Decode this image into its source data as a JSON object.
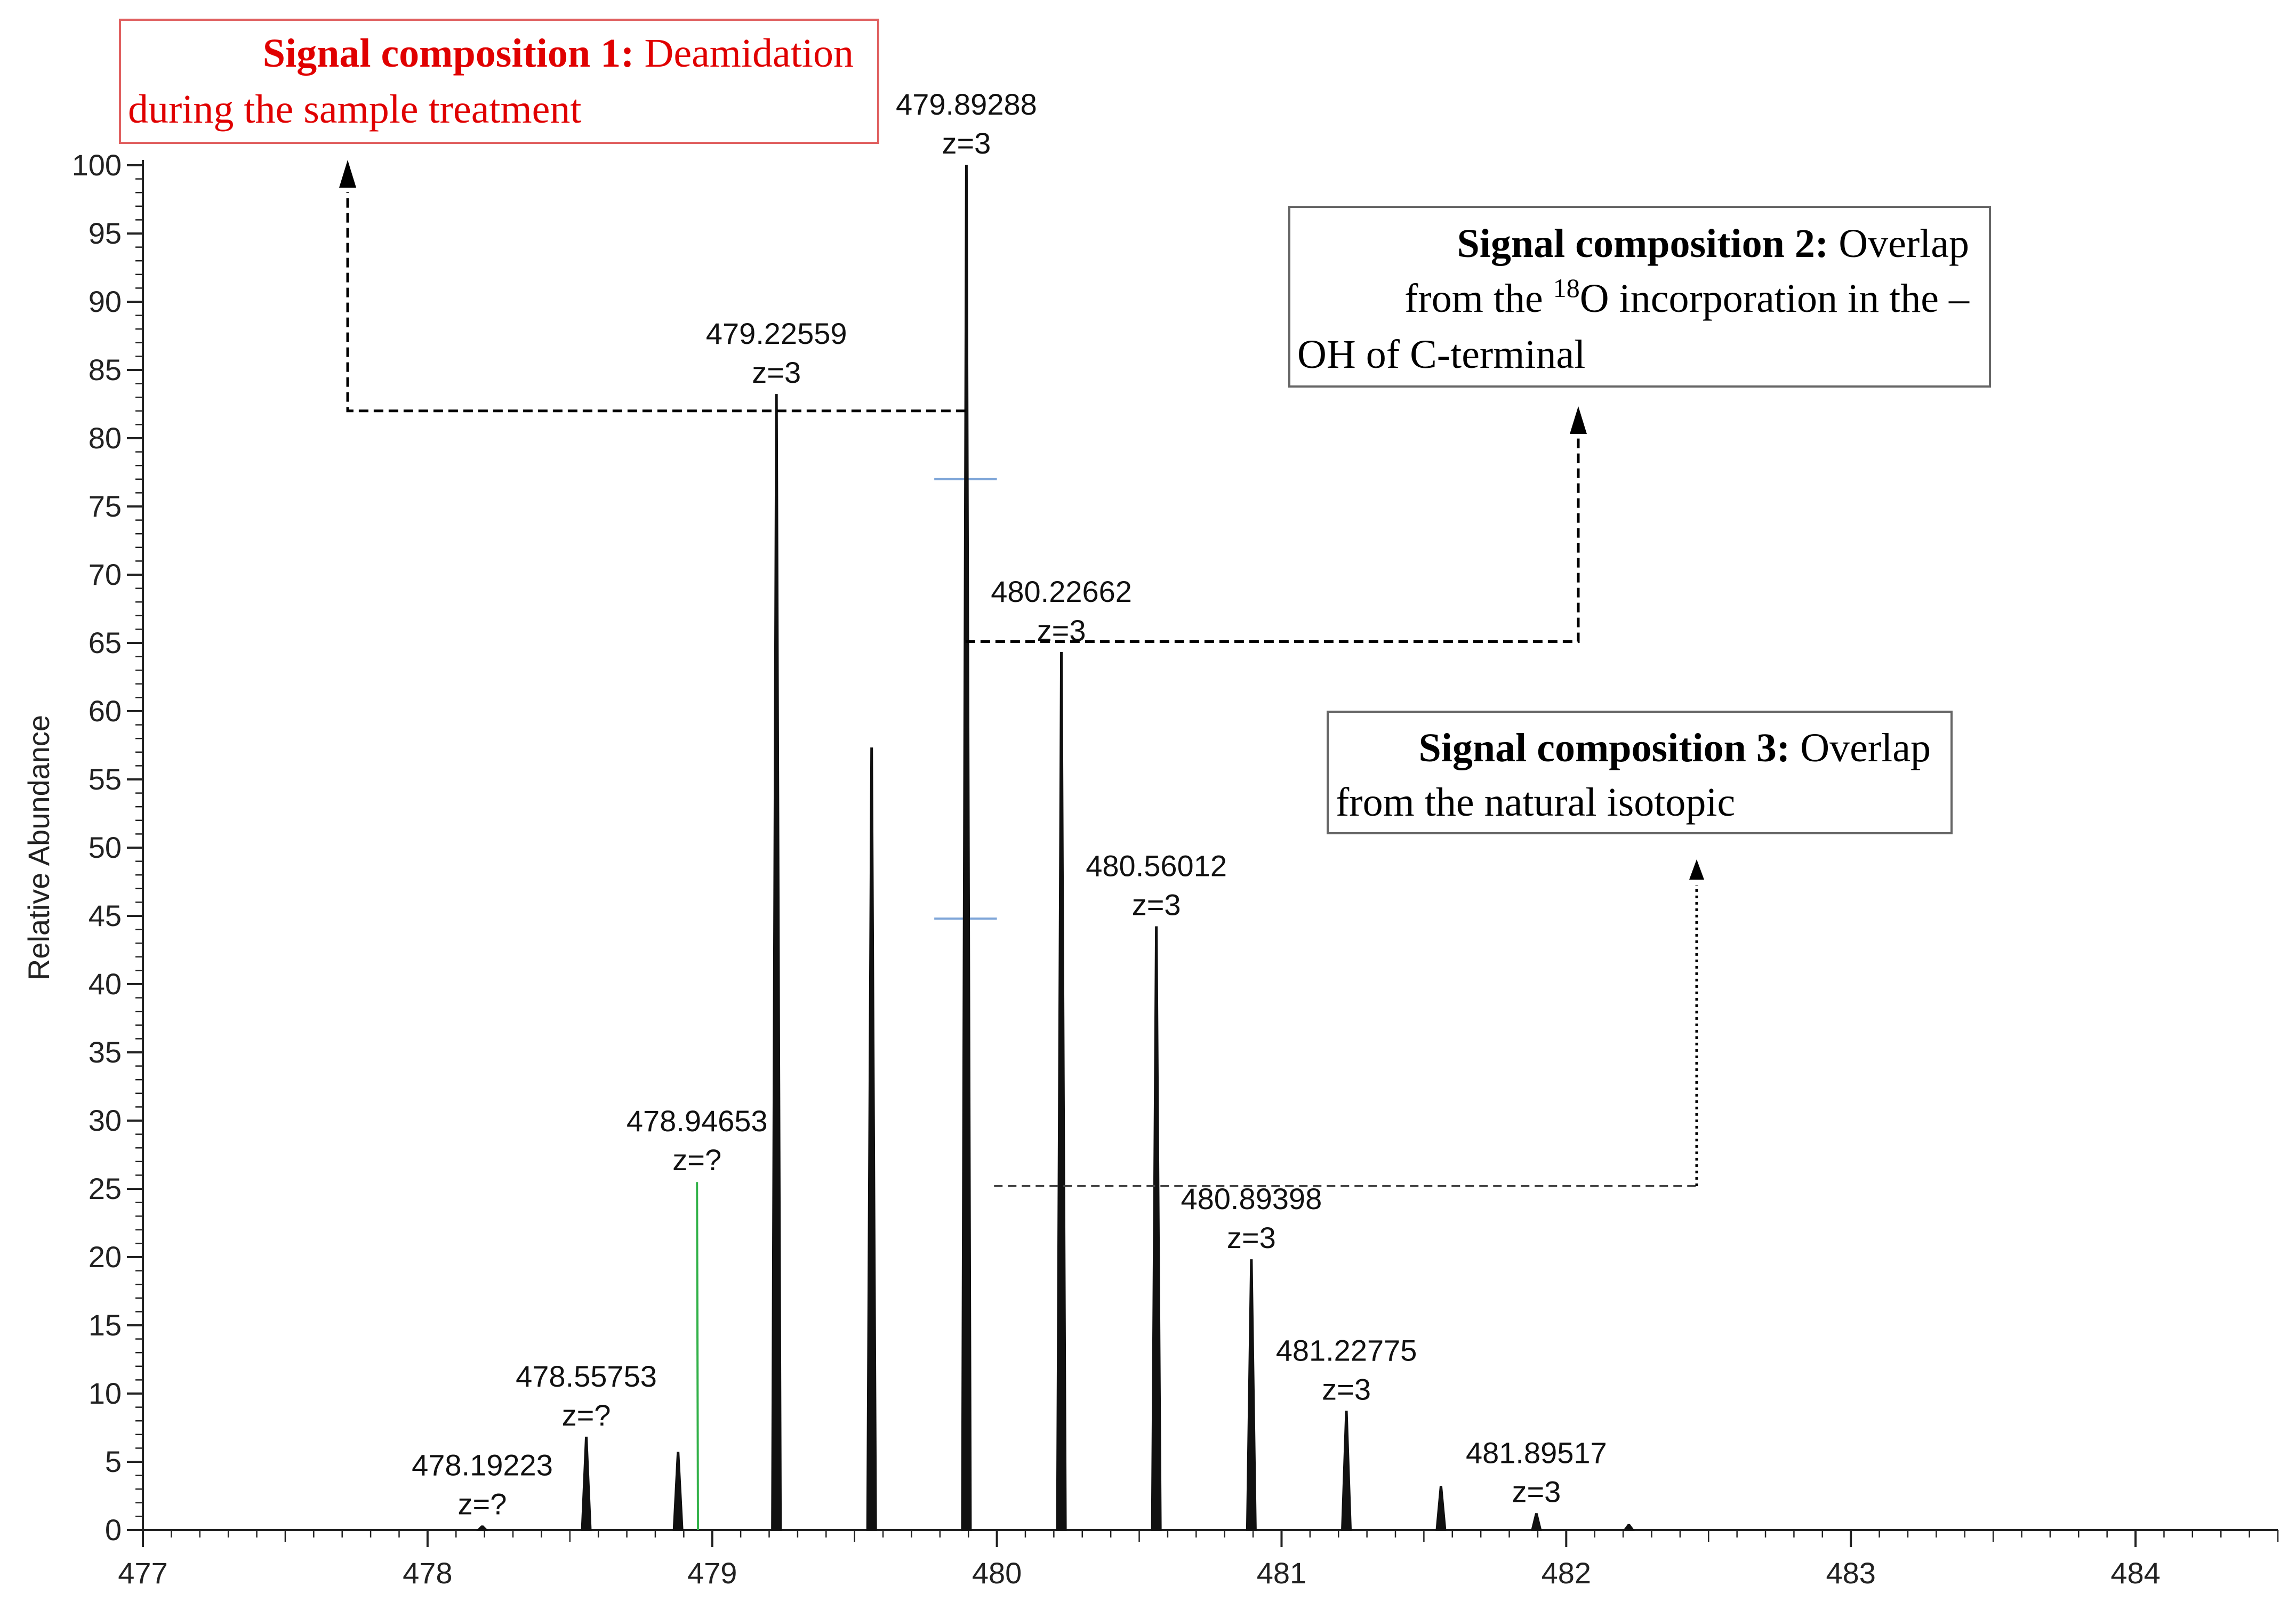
{
  "chart_data": {
    "type": "line",
    "subtype": "mass-spectrum",
    "title": "",
    "xlabel": "",
    "ylabel": "Relative Abundance",
    "xlim": [
      477,
      484.5
    ],
    "ylim": [
      0,
      100
    ],
    "x_ticks": [
      477,
      478,
      479,
      480,
      481,
      482,
      483,
      484
    ],
    "y_ticks": [
      0,
      5,
      10,
      15,
      20,
      25,
      30,
      35,
      40,
      45,
      50,
      55,
      60,
      65,
      70,
      75,
      80,
      85,
      90,
      95,
      100
    ],
    "grid": false,
    "legend": "none",
    "peaks": [
      {
        "mz": 478.19223,
        "intensity": 0.3
      },
      {
        "mz": 478.55753,
        "intensity": 6.8
      },
      {
        "mz": 478.88,
        "intensity": 5.7
      },
      {
        "mz": 479.22559,
        "intensity": 83.2
      },
      {
        "mz": 479.56,
        "intensity": 57.3
      },
      {
        "mz": 479.89288,
        "intensity": 100
      },
      {
        "mz": 480.22662,
        "intensity": 64.3
      },
      {
        "mz": 480.56012,
        "intensity": 44.2
      },
      {
        "mz": 480.89398,
        "intensity": 19.8
      },
      {
        "mz": 481.22775,
        "intensity": 8.7
      },
      {
        "mz": 481.56,
        "intensity": 3.2
      },
      {
        "mz": 481.89517,
        "intensity": 1.2
      },
      {
        "mz": 482.22,
        "intensity": 0.4
      }
    ],
    "peak_labels": [
      {
        "mz": 478.19223,
        "intensity": 0.3,
        "mass": "478.19223",
        "charge": "z=?"
      },
      {
        "mz": 478.55753,
        "intensity": 6.8,
        "mass": "478.55753",
        "charge": "z=?"
      },
      {
        "mz": 478.94653,
        "intensity": 25.5,
        "mass": "478.94653",
        "charge": "z=?"
      },
      {
        "mz": 479.22559,
        "intensity": 83.2,
        "mass": "479.22559",
        "charge": "z=3"
      },
      {
        "mz": 479.89288,
        "intensity": 100,
        "mass": "479.89288",
        "charge": "z=3"
      },
      {
        "mz": 480.22662,
        "intensity": 64.3,
        "mass": "480.22662",
        "charge": "z=3"
      },
      {
        "mz": 480.56012,
        "intensity": 44.2,
        "mass": "480.56012",
        "charge": "z=3"
      },
      {
        "mz": 480.89398,
        "intensity": 19.8,
        "mass": "480.89398",
        "charge": "z=3"
      },
      {
        "mz": 481.22775,
        "intensity": 8.7,
        "mass": "481.22775",
        "charge": "z=3"
      },
      {
        "mz": 481.89517,
        "intensity": 1.2,
        "mass": "481.89517",
        "charge": "z=3"
      }
    ],
    "green_leader": {
      "from_mz": 478.94653,
      "from_intensity": 25.5,
      "to_mz": 478.95,
      "to_intensity": 0
    },
    "blue_markers": [
      {
        "mz_from": 479.78,
        "mz_to": 480.0,
        "intensity": 77
      },
      {
        "mz_from": 479.78,
        "mz_to": 480.0,
        "intensity": 44.8
      }
    ]
  },
  "callouts": [
    {
      "id": "composition-1",
      "bold": "Signal composition 1:",
      "rest": " Deamidation during the sample treatment",
      "color": "#e00000",
      "border": "#e06060"
    },
    {
      "id": "composition-2",
      "bold": "Signal composition 2:",
      "rest_before_sup": " Overlap from the ",
      "sup": "18",
      "rest_after_sup": "O  incorporation in the –OH of C-terminal",
      "color": "#000000",
      "border": "#666666"
    },
    {
      "id": "composition-3",
      "bold": "Signal composition 3:",
      "rest": " Overlap from the natural isotopic",
      "color": "#000000",
      "border": "#666666"
    }
  ]
}
